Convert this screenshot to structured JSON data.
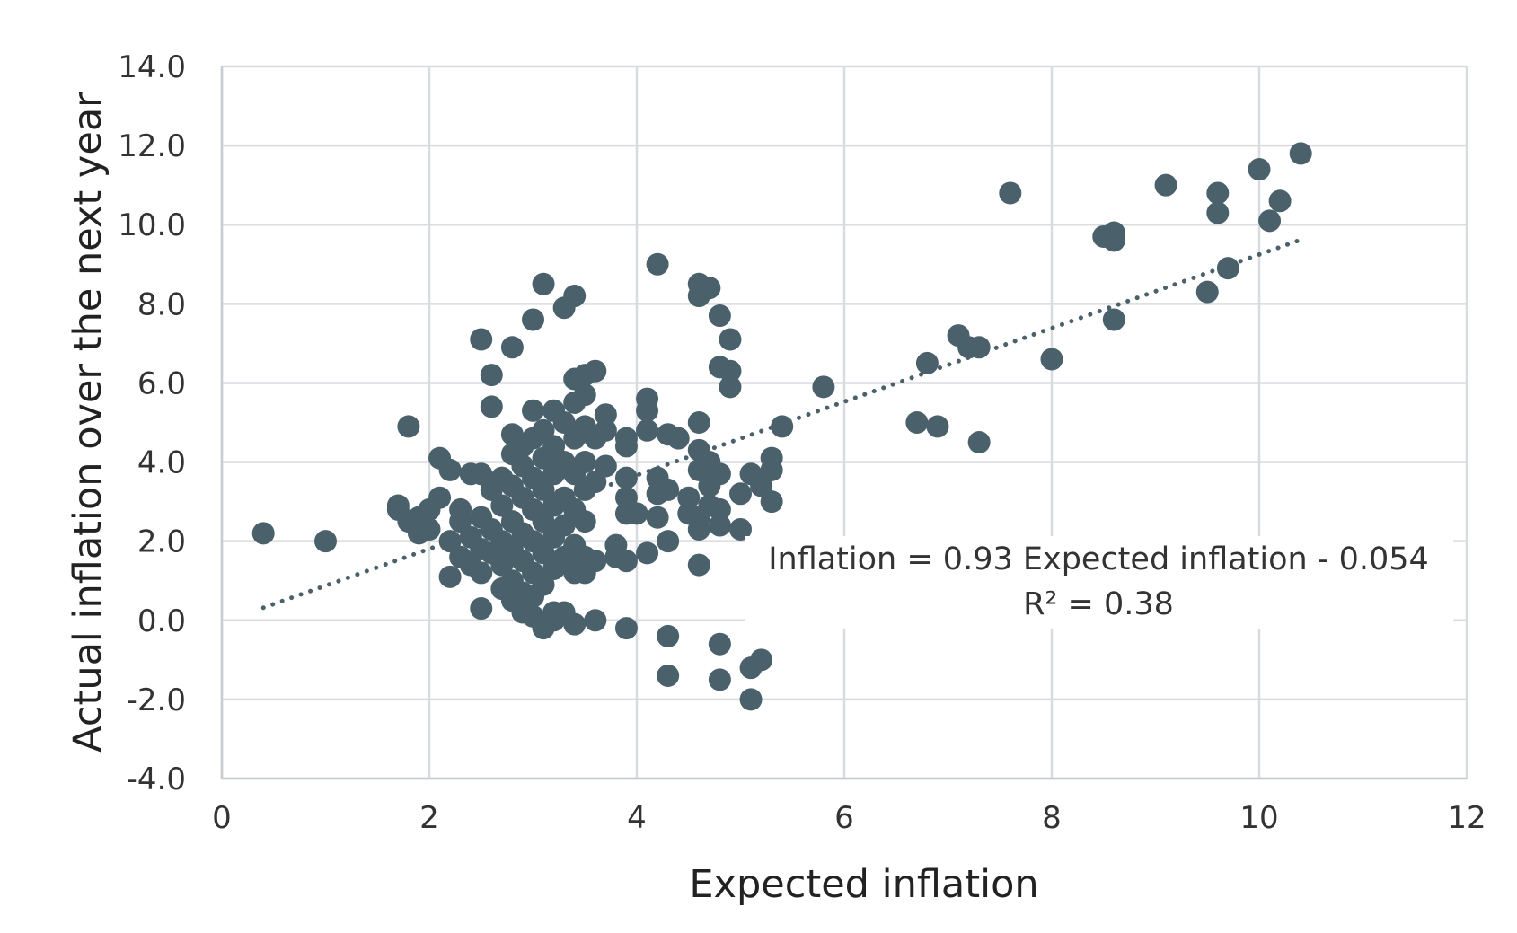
{
  "chart_data": {
    "type": "scatter",
    "xlabel": "Expected inflation",
    "ylabel": "Actual inflation over the next year",
    "xlim": [
      0,
      12
    ],
    "ylim": [
      -4,
      14
    ],
    "x_ticks": [
      0,
      2,
      4,
      6,
      8,
      10,
      12
    ],
    "y_ticks": [
      -4,
      -2,
      0,
      2,
      4,
      6,
      8,
      10,
      12,
      14
    ],
    "x_tick_labels": [
      "0",
      "2",
      "4",
      "6",
      "8",
      "10",
      "12"
    ],
    "y_tick_labels": [
      "-4.0",
      "-2.0",
      "0.0",
      "2.0",
      "4.0",
      "6.0",
      "8.0",
      "10.0",
      "12.0",
      "14.0"
    ],
    "grid": true,
    "legend": "none",
    "colors": {
      "point": "#4a616b",
      "trendline": "#4a616b",
      "grid": "#d9dcdf",
      "axis": "#c8ccd0"
    },
    "trendline": {
      "style": "dotted",
      "slope": 0.93,
      "intercept": -0.054,
      "x_range": [
        0.4,
        10.4
      ],
      "equation_label": "Inflation = 0.93 Expected inflation - 0.054",
      "r2_label": "R² = 0.38"
    },
    "series": [
      {
        "points": [
          [
            0.4,
            2.2
          ],
          [
            1.0,
            2.0
          ],
          [
            1.7,
            2.9
          ],
          [
            1.7,
            2.8
          ],
          [
            1.8,
            2.5
          ],
          [
            1.8,
            4.9
          ],
          [
            1.9,
            2.6
          ],
          [
            1.9,
            2.2
          ],
          [
            2.0,
            2.3
          ],
          [
            2.0,
            2.8
          ],
          [
            2.1,
            3.1
          ],
          [
            2.1,
            4.1
          ],
          [
            2.2,
            3.8
          ],
          [
            2.2,
            2.0
          ],
          [
            2.2,
            1.1
          ],
          [
            2.3,
            2.5
          ],
          [
            2.3,
            1.6
          ],
          [
            2.3,
            2.8
          ],
          [
            2.4,
            3.7
          ],
          [
            2.4,
            2.1
          ],
          [
            2.4,
            1.4
          ],
          [
            2.5,
            3.7
          ],
          [
            2.5,
            2.6
          ],
          [
            2.5,
            1.8
          ],
          [
            2.5,
            1.2
          ],
          [
            2.5,
            0.3
          ],
          [
            2.5,
            7.1
          ],
          [
            2.6,
            6.2
          ],
          [
            2.6,
            5.4
          ],
          [
            2.6,
            3.3
          ],
          [
            2.6,
            2.3
          ],
          [
            2.6,
            1.7
          ],
          [
            2.7,
            3.6
          ],
          [
            2.7,
            2.9
          ],
          [
            2.7,
            2.0
          ],
          [
            2.7,
            1.4
          ],
          [
            2.7,
            0.8
          ],
          [
            2.8,
            4.7
          ],
          [
            2.8,
            4.2
          ],
          [
            2.8,
            3.4
          ],
          [
            2.8,
            2.5
          ],
          [
            2.8,
            1.8
          ],
          [
            2.8,
            1.0
          ],
          [
            2.8,
            0.5
          ],
          [
            2.8,
            6.9
          ],
          [
            2.9,
            4.4
          ],
          [
            2.9,
            3.9
          ],
          [
            2.9,
            3.1
          ],
          [
            2.9,
            2.2
          ],
          [
            2.9,
            1.5
          ],
          [
            2.9,
            0.7
          ],
          [
            2.9,
            0.2
          ],
          [
            3.0,
            5.3
          ],
          [
            3.0,
            4.6
          ],
          [
            3.0,
            3.6
          ],
          [
            3.0,
            2.8
          ],
          [
            3.0,
            2.0
          ],
          [
            3.0,
            1.2
          ],
          [
            3.0,
            0.6
          ],
          [
            3.0,
            0.1
          ],
          [
            3.0,
            7.6
          ],
          [
            3.1,
            8.5
          ],
          [
            3.1,
            4.8
          ],
          [
            3.1,
            4.1
          ],
          [
            3.1,
            3.3
          ],
          [
            3.1,
            2.5
          ],
          [
            3.1,
            1.7
          ],
          [
            3.1,
            0.9
          ],
          [
            3.1,
            -0.2
          ],
          [
            3.2,
            5.3
          ],
          [
            3.2,
            4.4
          ],
          [
            3.2,
            3.7
          ],
          [
            3.2,
            2.9
          ],
          [
            3.2,
            2.1
          ],
          [
            3.2,
            1.3
          ],
          [
            3.2,
            0.2
          ],
          [
            3.2,
            0.0
          ],
          [
            3.3,
            5.0
          ],
          [
            3.3,
            4.0
          ],
          [
            3.3,
            3.1
          ],
          [
            3.3,
            2.4
          ],
          [
            3.3,
            1.6
          ],
          [
            3.3,
            0.2
          ],
          [
            3.3,
            7.9
          ],
          [
            3.4,
            8.2
          ],
          [
            3.4,
            6.1
          ],
          [
            3.4,
            5.5
          ],
          [
            3.4,
            4.6
          ],
          [
            3.4,
            3.7
          ],
          [
            3.4,
            2.8
          ],
          [
            3.4,
            1.9
          ],
          [
            3.4,
            1.2
          ],
          [
            3.4,
            -0.1
          ],
          [
            3.5,
            6.2
          ],
          [
            3.5,
            5.7
          ],
          [
            3.5,
            4.9
          ],
          [
            3.5,
            4.0
          ],
          [
            3.5,
            3.3
          ],
          [
            3.5,
            2.5
          ],
          [
            3.5,
            1.6
          ],
          [
            3.5,
            1.2
          ],
          [
            3.6,
            6.3
          ],
          [
            3.6,
            4.6
          ],
          [
            3.6,
            3.5
          ],
          [
            3.6,
            1.5
          ],
          [
            3.6,
            0.0
          ],
          [
            3.7,
            5.2
          ],
          [
            3.7,
            4.8
          ],
          [
            3.7,
            3.9
          ],
          [
            3.8,
            1.9
          ],
          [
            3.8,
            1.6
          ],
          [
            3.9,
            4.6
          ],
          [
            3.9,
            4.4
          ],
          [
            3.9,
            3.6
          ],
          [
            3.9,
            3.1
          ],
          [
            3.9,
            2.7
          ],
          [
            3.9,
            1.5
          ],
          [
            3.9,
            -0.2
          ],
          [
            4.0,
            2.7
          ],
          [
            4.1,
            5.6
          ],
          [
            4.1,
            5.3
          ],
          [
            4.1,
            4.8
          ],
          [
            4.1,
            1.7
          ],
          [
            4.2,
            9.0
          ],
          [
            4.2,
            3.6
          ],
          [
            4.2,
            3.2
          ],
          [
            4.2,
            2.6
          ],
          [
            4.3,
            4.7
          ],
          [
            4.3,
            3.3
          ],
          [
            4.3,
            2.0
          ],
          [
            4.3,
            -0.4
          ],
          [
            4.3,
            -1.4
          ],
          [
            4.4,
            4.6
          ],
          [
            4.5,
            3.1
          ],
          [
            4.5,
            2.7
          ],
          [
            4.6,
            8.5
          ],
          [
            4.6,
            8.2
          ],
          [
            4.6,
            5.0
          ],
          [
            4.6,
            4.3
          ],
          [
            4.6,
            3.8
          ],
          [
            4.6,
            2.6
          ],
          [
            4.6,
            2.3
          ],
          [
            4.6,
            1.4
          ],
          [
            4.7,
            8.4
          ],
          [
            4.7,
            4.0
          ],
          [
            4.7,
            3.4
          ],
          [
            4.7,
            2.9
          ],
          [
            4.8,
            7.7
          ],
          [
            4.8,
            6.4
          ],
          [
            4.8,
            3.7
          ],
          [
            4.8,
            2.8
          ],
          [
            4.8,
            2.4
          ],
          [
            4.8,
            -0.6
          ],
          [
            4.8,
            -1.5
          ],
          [
            4.9,
            7.1
          ],
          [
            4.9,
            6.3
          ],
          [
            4.9,
            5.9
          ],
          [
            5.0,
            3.2
          ],
          [
            5.0,
            2.3
          ],
          [
            5.1,
            3.7
          ],
          [
            5.1,
            -1.2
          ],
          [
            5.1,
            -2.0
          ],
          [
            5.2,
            3.4
          ],
          [
            5.2,
            -1.0
          ],
          [
            5.3,
            4.1
          ],
          [
            5.3,
            3.8
          ],
          [
            5.3,
            3.0
          ],
          [
            5.4,
            4.9
          ],
          [
            5.8,
            5.9
          ],
          [
            6.7,
            5.0
          ],
          [
            6.8,
            6.5
          ],
          [
            6.9,
            4.9
          ],
          [
            7.1,
            7.2
          ],
          [
            7.2,
            6.9
          ],
          [
            7.3,
            6.9
          ],
          [
            7.3,
            4.5
          ],
          [
            7.6,
            10.8
          ],
          [
            8.0,
            6.6
          ],
          [
            8.5,
            9.7
          ],
          [
            8.6,
            9.8
          ],
          [
            8.6,
            9.6
          ],
          [
            8.6,
            7.6
          ],
          [
            9.1,
            11.0
          ],
          [
            9.5,
            8.3
          ],
          [
            9.6,
            10.8
          ],
          [
            9.6,
            10.3
          ],
          [
            9.7,
            8.9
          ],
          [
            10.0,
            11.4
          ],
          [
            10.1,
            10.1
          ],
          [
            10.2,
            10.6
          ],
          [
            10.4,
            11.8
          ]
        ]
      }
    ]
  }
}
